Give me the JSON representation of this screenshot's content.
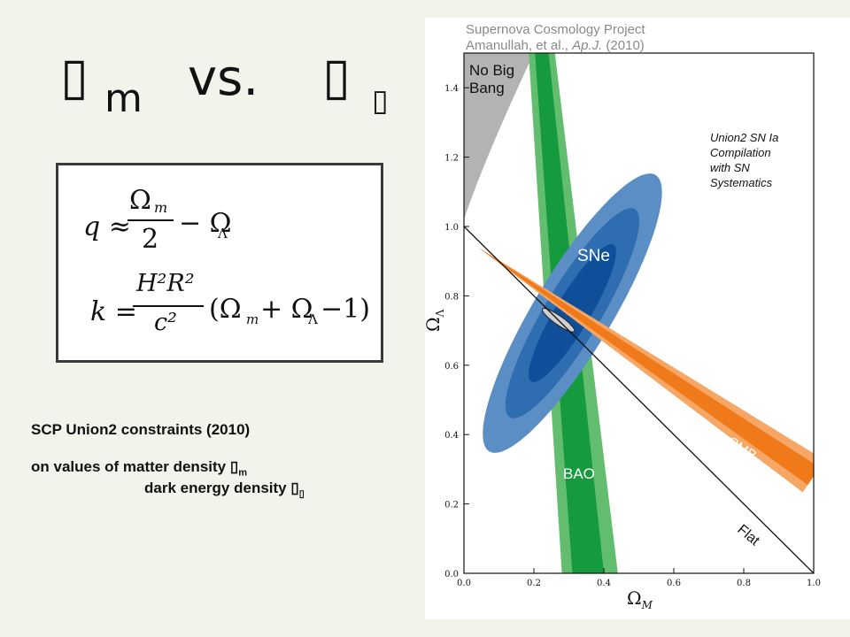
{
  "slide": {
    "title": {
      "left_symbol": "▯",
      "left_subscript": "m",
      "vs": "vs.",
      "right_symbol": "▯",
      "right_subscript": "▯"
    },
    "equations": {
      "eq1": {
        "lhs": "q ≈",
        "frac_num": "Ω",
        "frac_num_sub": "m",
        "frac_den": "2",
        "rest": "− Ω",
        "rest_sub": "Λ"
      },
      "eq2": {
        "lhs": "k =",
        "frac_num": "H²R²",
        "frac_den": "c²",
        "paren_open": "(Ω",
        "sub_m": "m",
        "plus": "+ Ω",
        "sub_lambda": "Λ",
        "paren_close": "−1)"
      }
    },
    "caption": {
      "line1": "SCP  Union2  constraints  (2010)",
      "line2_prefix": "on values of  matter density ",
      "line2_symbol": "▯",
      "line2_sub": "m",
      "line3_prefix": "dark energy density ",
      "line3_symbol": "▯",
      "line3_sub": "▯"
    }
  },
  "chart_data": {
    "type": "contour",
    "header_line1": "Supernova Cosmology Project",
    "header_line2_a": "Amanullah, et al., ",
    "header_line2_journal": "Ap.J.",
    "header_line2_b": " (2010)",
    "xlabel": "Ω",
    "xlabel_sub": "M",
    "ylabel": "Ω",
    "ylabel_sub": "Λ",
    "xlim": [
      0.0,
      1.0
    ],
    "ylim": [
      0.0,
      1.5
    ],
    "xticks": [
      "0.0",
      "0.2",
      "0.4",
      "0.6",
      "0.8",
      "1.0"
    ],
    "yticks": [
      "0.0",
      "0.2",
      "0.4",
      "0.6",
      "0.8",
      "1.0",
      "1.2",
      "1.4"
    ],
    "annotations": {
      "no_big_bang_1": "No Big",
      "no_big_bang_2": "Bang",
      "compilation_1": "Union2 SN Ia",
      "compilation_2": "Compilation",
      "compilation_3": "with SN",
      "compilation_4": "Systematics",
      "sne": "SNe",
      "bao": "BAO",
      "cmb": "CMB",
      "flat": "Flat"
    },
    "regions": {
      "sne_center": [
        0.31,
        0.75
      ],
      "sne_contours": [
        {
          "level": "99.7%",
          "color": "#5b8ec4",
          "semi_major": 0.93,
          "semi_minor": 0.225,
          "angle_deg": 59
        },
        {
          "level": "95.4%",
          "color": "#2d6db0",
          "semi_major": 0.7,
          "semi_minor": 0.16,
          "angle_deg": 59
        },
        {
          "level": "68.3%",
          "color": "#0f4f9a",
          "semi_major": 0.46,
          "semi_minor": 0.1,
          "angle_deg": 59
        }
      ],
      "bao_band": {
        "color_inner": "#159a3e",
        "color_outer": "#62be6e",
        "top_x": [
          0.185,
          0.26
        ],
        "bottom_x": [
          0.28,
          0.44
        ]
      },
      "cmb_band": {
        "color_inner": "#f07a1a",
        "color_outer": "#f6a766",
        "start": [
          0.04,
          0.94
        ],
        "end": [
          1.0,
          0.28
        ]
      },
      "flat_line": [
        [
          0.0,
          1.0
        ],
        [
          1.0,
          0.0
        ]
      ],
      "combined": {
        "center": [
          0.27,
          0.73
        ],
        "color": "#cfcfcf"
      },
      "no_big_bang_color": "#b3b3b3"
    },
    "colors": {
      "sne_label": "#ffffff",
      "bao_label": "#ffffff",
      "cmb_label": "#ffffff"
    }
  }
}
